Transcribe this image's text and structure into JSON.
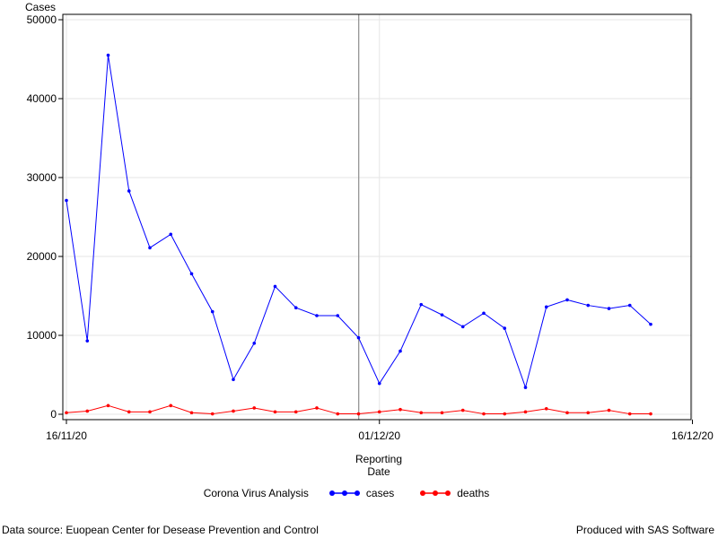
{
  "chart_data": {
    "type": "line",
    "ylabel": "Cases",
    "xlabel_line1": "Reporting",
    "xlabel_line2": "Date",
    "x_ticks": [
      "16/11/20",
      "01/12/20",
      "16/12/20"
    ],
    "y_ticks": [
      "0",
      "10000",
      "20000",
      "30000",
      "40000",
      "50000"
    ],
    "ylim": [
      0,
      50000
    ],
    "reference_line_date": "01/12/20",
    "grid": true,
    "legend_position": "bottom",
    "legend_title": "Corona Virus Analysis",
    "x": [
      "16/11/20",
      "17/11/20",
      "18/11/20",
      "19/11/20",
      "20/11/20",
      "21/11/20",
      "22/11/20",
      "23/11/20",
      "24/11/20",
      "25/11/20",
      "26/11/20",
      "27/11/20",
      "28/11/20",
      "29/11/20",
      "30/11/20",
      "01/12/20",
      "02/12/20",
      "03/12/20",
      "04/12/20",
      "05/12/20",
      "06/12/20",
      "07/12/20",
      "08/12/20",
      "09/12/20",
      "10/12/20",
      "11/12/20",
      "12/12/20",
      "13/12/20",
      "14/12/20"
    ],
    "series": [
      {
        "name": "cases",
        "color": "#0000ff",
        "values": [
          27100,
          9300,
          45500,
          28300,
          21100,
          22800,
          17800,
          13000,
          4400,
          9000,
          16200,
          13500,
          12500,
          12500,
          9700,
          3900,
          8000,
          13900,
          12600,
          11100,
          12800,
          10900,
          3400,
          13600,
          14500,
          13800,
          13400,
          13800,
          11400
        ]
      },
      {
        "name": "deaths",
        "color": "#ff0000",
        "values": [
          200,
          400,
          1100,
          300,
          300,
          1100,
          200,
          50,
          400,
          800,
          300,
          300,
          800,
          50,
          50,
          300,
          600,
          200,
          200,
          500,
          50,
          50,
          300,
          700,
          200,
          200,
          500,
          50,
          50
        ]
      }
    ]
  },
  "footer": {
    "source": "Data source: Euopean Center for Desease Prevention and Control",
    "produced": "Produced with SAS Software"
  }
}
